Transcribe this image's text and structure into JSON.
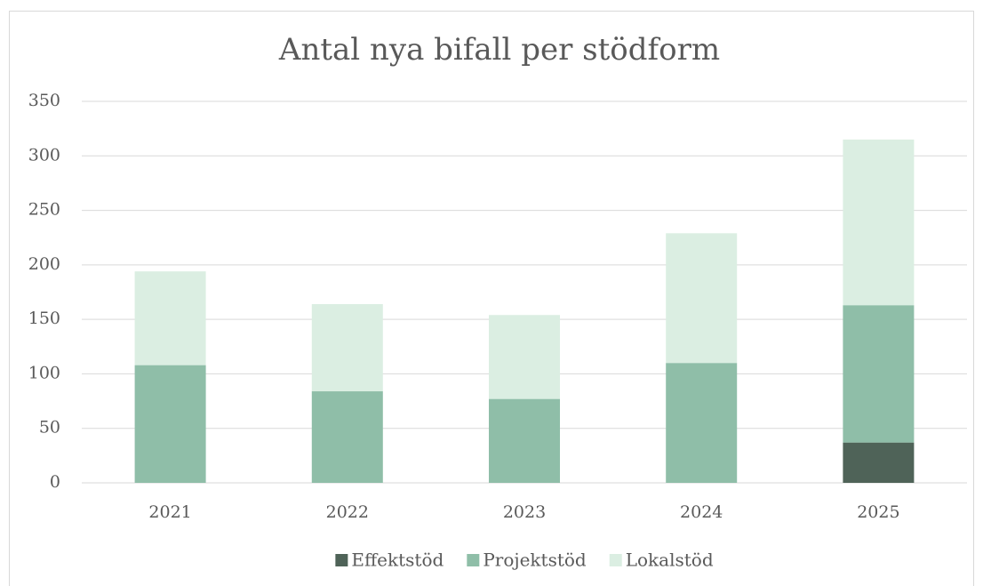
{
  "chart_data": {
    "type": "stacked_bar",
    "title": "Antal nya bifall per stödform",
    "categories": [
      "2021",
      "2022",
      "2023",
      "2024",
      "2025"
    ],
    "series": [
      {
        "name": "Effektstöd",
        "color": "#4f6358",
        "values": [
          0,
          0,
          0,
          0,
          37
        ]
      },
      {
        "name": "Projektstöd",
        "color": "#8fbea8",
        "values": [
          108,
          84,
          77,
          110,
          126
        ]
      },
      {
        "name": "Lokalstöd",
        "color": "#dbeee2",
        "values": [
          86,
          80,
          77,
          119,
          152
        ]
      }
    ],
    "ylim": [
      0,
      350
    ],
    "yticks": [
      0,
      50,
      100,
      150,
      200,
      250,
      300,
      350
    ],
    "grid": true,
    "legend": "bottom"
  }
}
